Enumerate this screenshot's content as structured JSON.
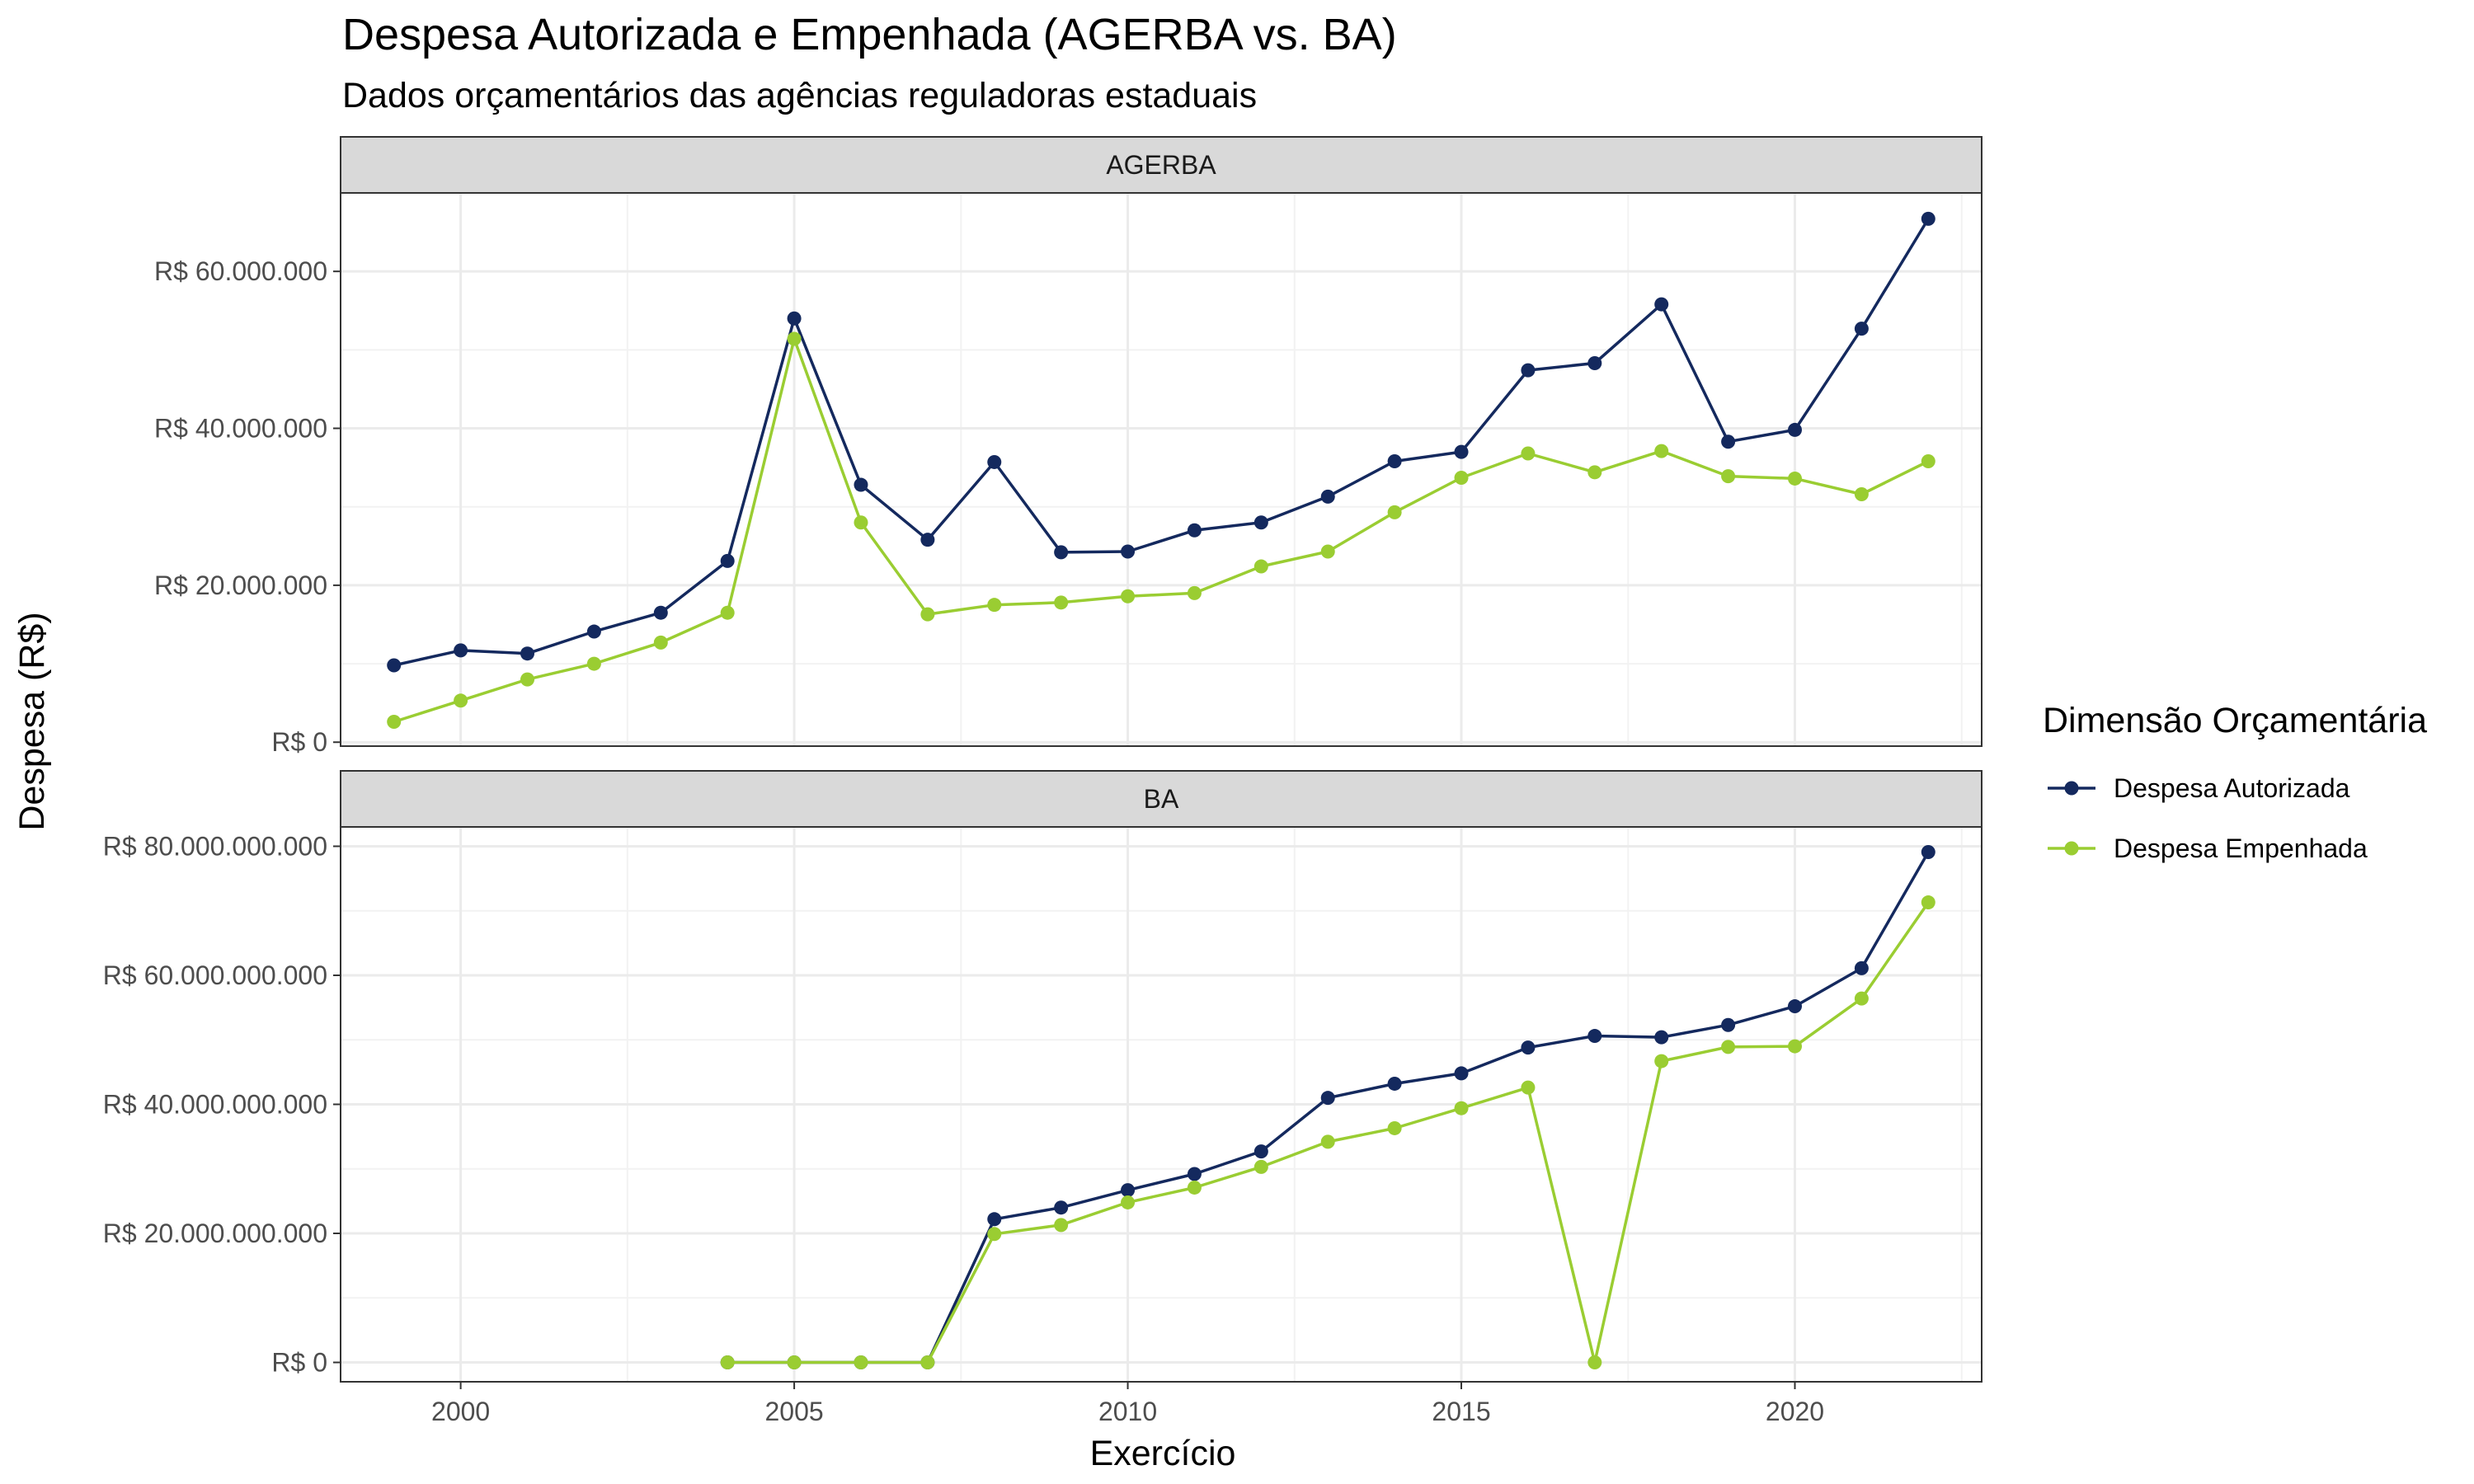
{
  "chart_data": {
    "type": "line",
    "title": "Despesa Autorizada e Empenhada (AGERBA vs. BA)",
    "subtitle": "Dados orçamentários das agências reguladoras estaduais",
    "xlabel": "Exercício",
    "ylabel": "Despesa (R$)",
    "legend": {
      "title": "Dimensão Orçamentária",
      "position": "right",
      "items": [
        "Despesa Autorizada",
        "Despesa Empenhada"
      ]
    },
    "colors": {
      "Despesa Autorizada": "#14295e",
      "Despesa Empenhada": "#9acd32"
    },
    "grid": true,
    "xlim": [
      1998.2,
      2022.8
    ],
    "x_ticks": [
      2000,
      2005,
      2010,
      2015,
      2020
    ],
    "x_tick_labels": [
      "2000",
      "2005",
      "2010",
      "2015",
      "2020"
    ],
    "facets": [
      {
        "label": "AGERBA",
        "ylim": [
          -500000,
          70000000
        ],
        "y_ticks": [
          0,
          20000000,
          40000000,
          60000000
        ],
        "y_tick_labels": [
          "R$ 0",
          "R$ 20.000.000",
          "R$ 40.000.000",
          "R$ 60.000.000"
        ],
        "series": [
          {
            "name": "Despesa Autorizada",
            "x": [
              1999,
              2000,
              2001,
              2002,
              2003,
              2004,
              2005,
              2006,
              2007,
              2008,
              2009,
              2010,
              2011,
              2012,
              2013,
              2014,
              2015,
              2016,
              2017,
              2018,
              2019,
              2020,
              2021,
              2022
            ],
            "values": [
              9800000,
              11700000,
              11300000,
              14100000,
              16500000,
              23100000,
              54000000,
              32800000,
              25800000,
              35700000,
              24200000,
              24300000,
              27000000,
              28000000,
              31300000,
              35800000,
              37000000,
              47400000,
              48300000,
              55800000,
              38300000,
              39800000,
              52700000,
              66700000
            ]
          },
          {
            "name": "Despesa Empenhada",
            "x": [
              1999,
              2000,
              2001,
              2002,
              2003,
              2004,
              2005,
              2006,
              2007,
              2008,
              2009,
              2010,
              2011,
              2012,
              2013,
              2014,
              2015,
              2016,
              2017,
              2018,
              2019,
              2020,
              2021,
              2022
            ],
            "values": [
              2600000,
              5300000,
              8000000,
              10000000,
              12700000,
              16500000,
              51400000,
              28000000,
              16300000,
              17500000,
              17800000,
              18600000,
              19000000,
              22400000,
              24300000,
              29300000,
              33700000,
              36800000,
              34400000,
              37100000,
              33900000,
              33600000,
              31600000,
              35800000
            ]
          }
        ]
      },
      {
        "label": "BA",
        "ylim": [
          -3000000000,
          83000000000
        ],
        "y_ticks": [
          0,
          20000000000,
          40000000000,
          60000000000,
          80000000000
        ],
        "y_tick_labels": [
          "R$ 0",
          "R$ 20.000.000.000",
          "R$ 40.000.000.000",
          "R$ 60.000.000.000",
          "R$ 80.000.000.000"
        ],
        "series": [
          {
            "name": "Despesa Autorizada",
            "x": [
              2004,
              2005,
              2006,
              2007,
              2008,
              2009,
              2010,
              2011,
              2012,
              2013,
              2014,
              2015,
              2016,
              2017,
              2018,
              2019,
              2020,
              2021,
              2022
            ],
            "values": [
              0,
              0,
              0,
              0,
              22200000000,
              24000000000,
              26700000000,
              29200000000,
              32700000000,
              41000000000,
              43200000000,
              44800000000,
              48800000000,
              50600000000,
              50400000000,
              52300000000,
              55200000000,
              61100000000,
              79100000000
            ]
          },
          {
            "name": "Despesa Empenhada",
            "x": [
              2004,
              2005,
              2006,
              2007,
              2008,
              2009,
              2010,
              2011,
              2012,
              2013,
              2014,
              2015,
              2016,
              2017,
              2018,
              2019,
              2020,
              2021,
              2022
            ],
            "values": [
              0,
              0,
              0,
              0,
              19900000000,
              21300000000,
              24800000000,
              27100000000,
              30300000000,
              34200000000,
              36300000000,
              39400000000,
              42600000000,
              0,
              46700000000,
              48900000000,
              49000000000,
              56400000000,
              71300000000
            ]
          }
        ]
      }
    ]
  }
}
